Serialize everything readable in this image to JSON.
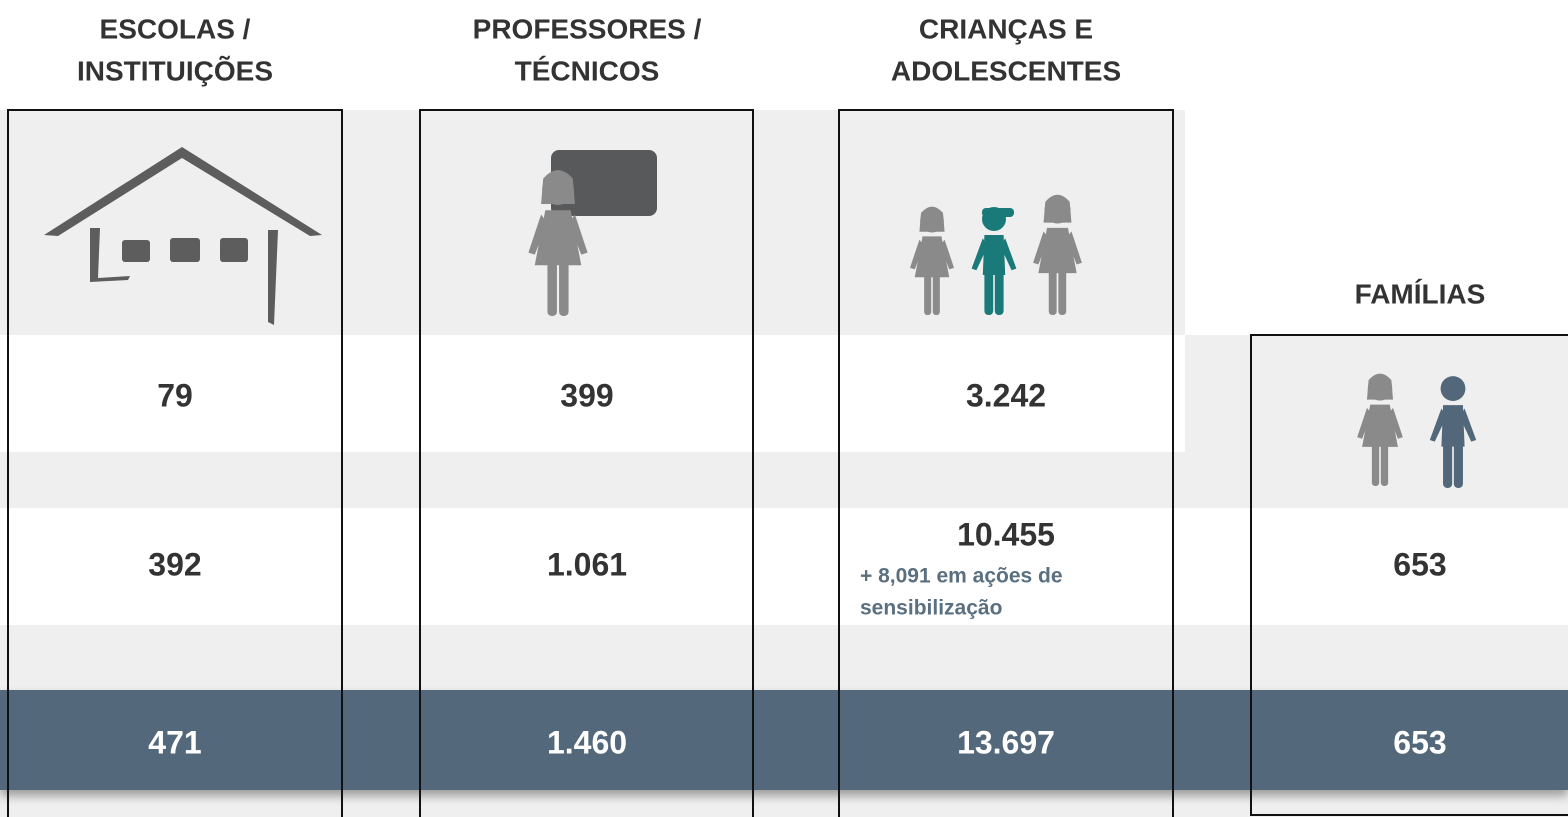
{
  "columns": [
    {
      "header": [
        "ESCOLAS /",
        "INSTITUIÇÕES"
      ],
      "row1": "79",
      "row2": "392",
      "total": "471"
    },
    {
      "header": [
        "PROFESSORES /",
        "TÉCNICOS"
      ],
      "row1": "399",
      "row2": "1.061",
      "total": "1.460"
    },
    {
      "header": [
        "CRIANÇAS E",
        "ADOLESCENTES"
      ],
      "row1": "3.242",
      "row2": "10.455",
      "note": [
        "+ 8,091 em ações de",
        "sensibilização"
      ],
      "total": "13.697"
    },
    {
      "header": [
        "FAMÍLIAS"
      ],
      "row2": "653",
      "total": "653"
    }
  ]
}
